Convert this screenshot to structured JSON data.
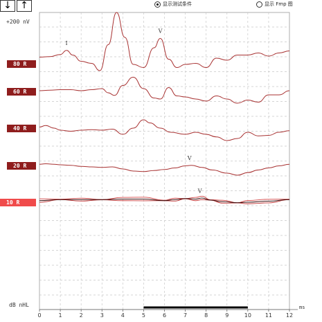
{
  "toolbar": {
    "down_symbol": "↓",
    "up_symbol": "↑"
  },
  "options": {
    "show_test_conditions": {
      "label": "显示测试条件",
      "selected": true
    },
    "show_fmp": {
      "label": "显示 Fmp 图",
      "selected": false
    }
  },
  "scale_label": "+200 nV",
  "unit_label": "dB nHL",
  "x_unit": "ms",
  "chart_data": {
    "type": "line",
    "xlabel": "ms",
    "ylabel": "dB nHL",
    "xlim": [
      0,
      12
    ],
    "x_ticks": [
      "0",
      "1",
      "2",
      "3",
      "4",
      "5",
      "6",
      "7",
      "8",
      "9",
      "10",
      "11",
      "12"
    ],
    "grid": true,
    "accent_color": "#a83232",
    "highlight_range_ms": [
      5,
      10
    ],
    "series": [
      {
        "label": "80 R",
        "active": false,
        "markers": [
          {
            "text": "I",
            "ms": 1.3
          },
          {
            "text": "V",
            "ms": 5.8
          }
        ],
        "x": [
          0,
          0.5,
          1,
          1.3,
          1.6,
          2,
          2.5,
          2.9,
          3.3,
          3.7,
          4.1,
          4.5,
          5,
          5.5,
          5.8,
          6.2,
          6.6,
          7,
          7.5,
          8,
          8.5,
          9,
          9.5,
          10,
          10.5,
          11,
          11.5,
          12
        ],
        "y": [
          -30,
          -25,
          -5,
          35,
          -10,
          -70,
          -90,
          -160,
          90,
          400,
          160,
          -100,
          -130,
          60,
          150,
          -50,
          -130,
          -100,
          -90,
          -130,
          -40,
          -60,
          -10,
          -10,
          10,
          -20,
          10,
          30
        ]
      },
      {
        "label": "60 R",
        "active": false,
        "markers": [],
        "x": [
          0,
          0.5,
          1,
          1.5,
          2,
          2.5,
          3,
          3.3,
          3.6,
          4,
          4.5,
          5,
          5.5,
          5.8,
          6.2,
          6.6,
          7,
          7.5,
          8,
          8.5,
          9,
          9.5,
          10,
          10.5,
          11,
          11.5,
          12
        ],
        "y": [
          0,
          5,
          10,
          10,
          0,
          10,
          20,
          -20,
          -45,
          50,
          130,
          20,
          -70,
          -80,
          30,
          -50,
          -60,
          -80,
          -100,
          -50,
          -80,
          -120,
          -90,
          -110,
          -40,
          -40,
          0
        ]
      },
      {
        "label": "40 R",
        "active": false,
        "markers": [],
        "x": [
          0,
          0.3,
          0.7,
          1,
          1.5,
          2,
          2.5,
          3,
          3.5,
          4,
          4.5,
          5,
          5.3,
          5.8,
          6.3,
          7,
          7.5,
          8,
          8.5,
          9,
          9.5,
          10,
          10.5,
          11,
          11.5,
          12
        ],
        "y": [
          10,
          25,
          0,
          -20,
          -30,
          -20,
          -15,
          -20,
          -10,
          -60,
          0,
          80,
          50,
          0,
          -40,
          -60,
          -40,
          -60,
          -85,
          -120,
          -100,
          -40,
          -75,
          -70,
          -40,
          -25
        ]
      },
      {
        "label": "20 R",
        "active": false,
        "markers": [
          {
            "text": "V",
            "ms": 7.2
          }
        ],
        "x": [
          0,
          0.3,
          0.7,
          1,
          1.5,
          2,
          2.5,
          3,
          3.5,
          4,
          4.5,
          5,
          5.5,
          6,
          6.5,
          7,
          7.3,
          7.8,
          8.3,
          9,
          9.5,
          10,
          10.5,
          11,
          11.5,
          12
        ],
        "y": [
          5,
          10,
          5,
          0,
          -5,
          -15,
          -20,
          -25,
          -20,
          -40,
          -60,
          -65,
          -55,
          -45,
          -30,
          -10,
          -5,
          -25,
          -50,
          -80,
          -100,
          -75,
          -50,
          -30,
          -10,
          5
        ]
      },
      {
        "label": "10 R",
        "active": true,
        "markers": [
          {
            "text": "V",
            "ms": 7.7
          }
        ],
        "x": [
          0,
          1,
          2,
          3,
          4,
          5,
          6,
          6.5,
          7,
          7.5,
          7.8,
          8.2,
          8.8,
          9.5,
          10,
          11,
          12
        ],
        "y": [
          -5,
          5,
          5,
          5,
          10,
          10,
          -5,
          5,
          15,
          10,
          20,
          0,
          -15,
          -25,
          -20,
          -10,
          5
        ]
      }
    ]
  }
}
